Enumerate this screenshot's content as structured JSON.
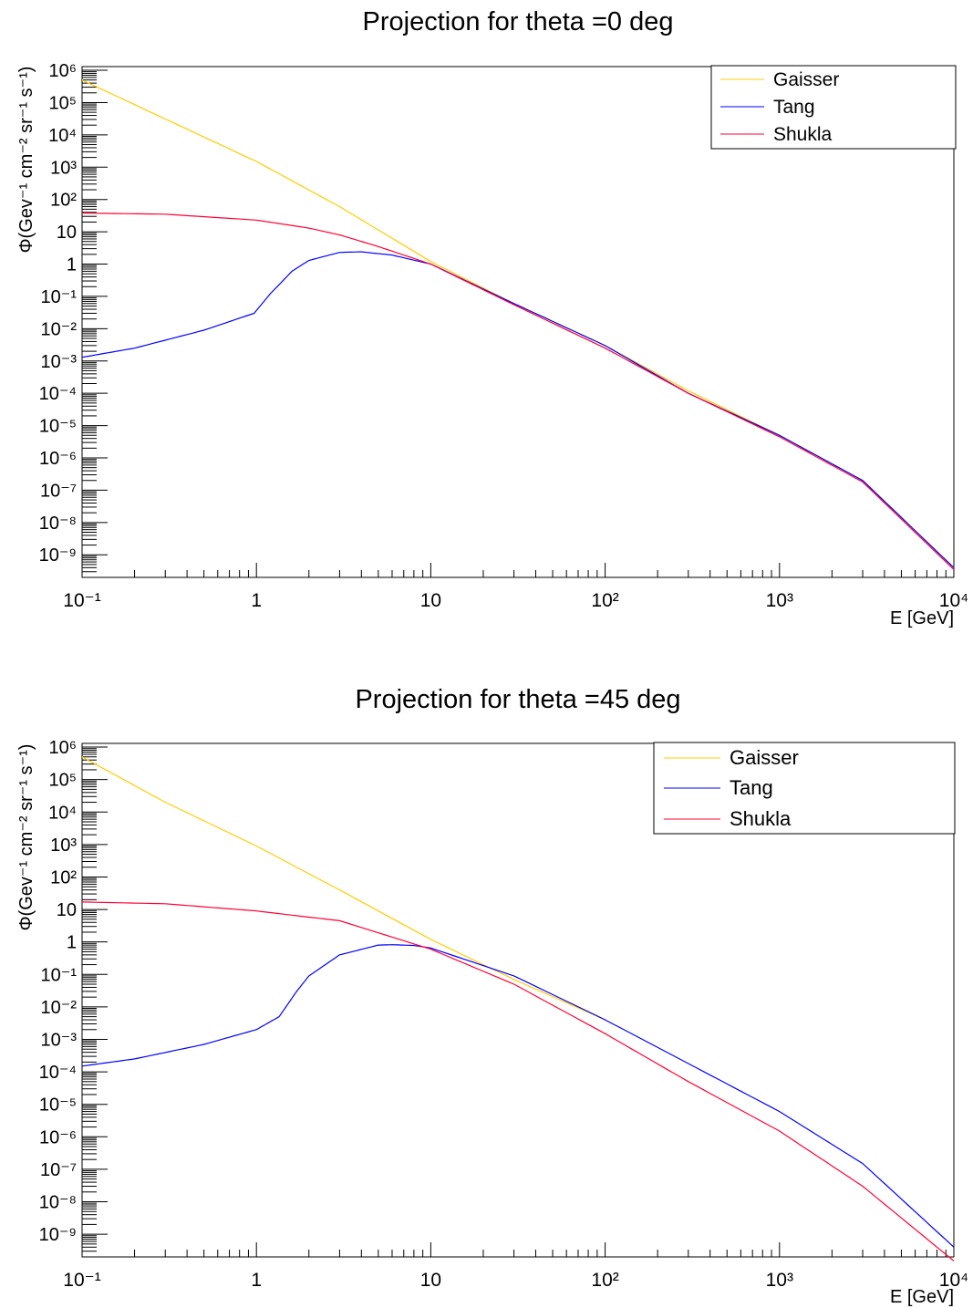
{
  "chart_data": [
    {
      "type": "line",
      "title": "Projection for theta =0 deg",
      "xlabel": "E [GeV]",
      "ylabel": "Φ(Gev⁻¹ cm⁻² sr⁻¹ s⁻¹)",
      "xscale": "log",
      "yscale": "log",
      "xlim": [
        0.1,
        10000
      ],
      "ylim": [
        2e-10,
        1300000.0
      ],
      "x_ticks": [
        "10⁻¹",
        "1",
        "10",
        "10²",
        "10³",
        "10⁴"
      ],
      "y_ticks": [
        "10⁶",
        "10⁵",
        "10⁴",
        "10³",
        "10²",
        "10",
        "1",
        "10⁻¹",
        "10⁻²",
        "10⁻³",
        "10⁻⁴",
        "10⁻⁵",
        "10⁻⁶",
        "10⁻⁷",
        "10⁻⁸",
        "10⁻⁹"
      ],
      "legend_position": "top-right",
      "series": [
        {
          "name": "Gaisser",
          "color": "#ffcc00",
          "x": [
            0.1,
            0.3,
            1,
            3,
            10,
            30,
            100,
            300,
            1000,
            3000,
            10000
          ],
          "y": [
            500000,
            31000,
            1500,
            60,
            1.2,
            0.06,
            0.003,
            0.00012,
            5e-06,
            2e-07,
            4e-10
          ]
        },
        {
          "name": "Tang",
          "color": "#0000ff",
          "x": [
            0.1,
            0.2,
            0.5,
            0.97,
            1.2,
            1.6,
            2,
            3,
            4,
            6,
            10,
            30,
            100,
            300,
            1000,
            3000,
            10000
          ],
          "y": [
            0.0013,
            0.0025,
            0.009,
            0.03,
            0.12,
            0.6,
            1.3,
            2.3,
            2.4,
            1.9,
            1.0,
            0.06,
            0.003,
            0.0001,
            5e-06,
            2e-07,
            4e-10
          ]
        },
        {
          "name": "Shukla",
          "color": "#ff0033",
          "x": [
            0.1,
            0.3,
            1,
            2,
            3,
            5,
            10,
            30,
            100,
            300,
            1000,
            3000,
            10000
          ],
          "y": [
            38,
            35,
            23,
            13,
            8,
            3.5,
            1.0,
            0.055,
            0.0025,
            0.0001,
            4.5e-06,
            1.8e-07,
            3.5e-10
          ]
        }
      ]
    },
    {
      "type": "line",
      "title": "Projection for theta =45 deg",
      "xlabel": "E [GeV]",
      "ylabel": "Φ(Gev⁻¹ cm⁻² sr⁻¹ s⁻¹)",
      "xscale": "log",
      "yscale": "log",
      "xlim": [
        0.1,
        10000
      ],
      "ylim": [
        2e-10,
        1300000.0
      ],
      "x_ticks": [
        "10⁻¹",
        "1",
        "10",
        "10²",
        "10³",
        "10⁴"
      ],
      "y_ticks": [
        "10⁶",
        "10⁵",
        "10⁴",
        "10³",
        "10²",
        "10",
        "1",
        "10⁻¹",
        "10⁻²",
        "10⁻³",
        "10⁻⁴",
        "10⁻⁵",
        "10⁻⁶",
        "10⁻⁷",
        "10⁻⁸",
        "10⁻⁹"
      ],
      "legend_position": "top-right",
      "series": [
        {
          "name": "Gaisser",
          "color": "#ffcc00",
          "x": [
            0.1,
            0.3,
            1,
            3,
            10,
            30,
            100
          ],
          "y": [
            500000,
            20000,
            900,
            40,
            1.2,
            0.07,
            0.004
          ]
        },
        {
          "name": "Tang",
          "color": "#0000ff",
          "x": [
            0.1,
            0.2,
            0.5,
            1,
            1.35,
            1.7,
            2,
            3,
            5,
            6,
            8,
            10,
            30,
            100,
            300,
            1000,
            3000,
            10000
          ],
          "y": [
            0.00015,
            0.00025,
            0.0007,
            0.002,
            0.005,
            0.03,
            0.09,
            0.4,
            0.8,
            0.82,
            0.78,
            0.65,
            0.09,
            0.004,
            0.00018,
            6e-06,
            1.5e-07,
            4e-10
          ]
        },
        {
          "name": "Shukla",
          "color": "#ff0033",
          "x": [
            0.1,
            0.3,
            1,
            3,
            10,
            30,
            100,
            300,
            1000,
            3000,
            10000
          ],
          "y": [
            17,
            15,
            9,
            4.5,
            0.6,
            0.05,
            0.0015,
            5e-05,
            1.5e-06,
            3e-08,
            1.5e-10
          ]
        }
      ]
    }
  ]
}
